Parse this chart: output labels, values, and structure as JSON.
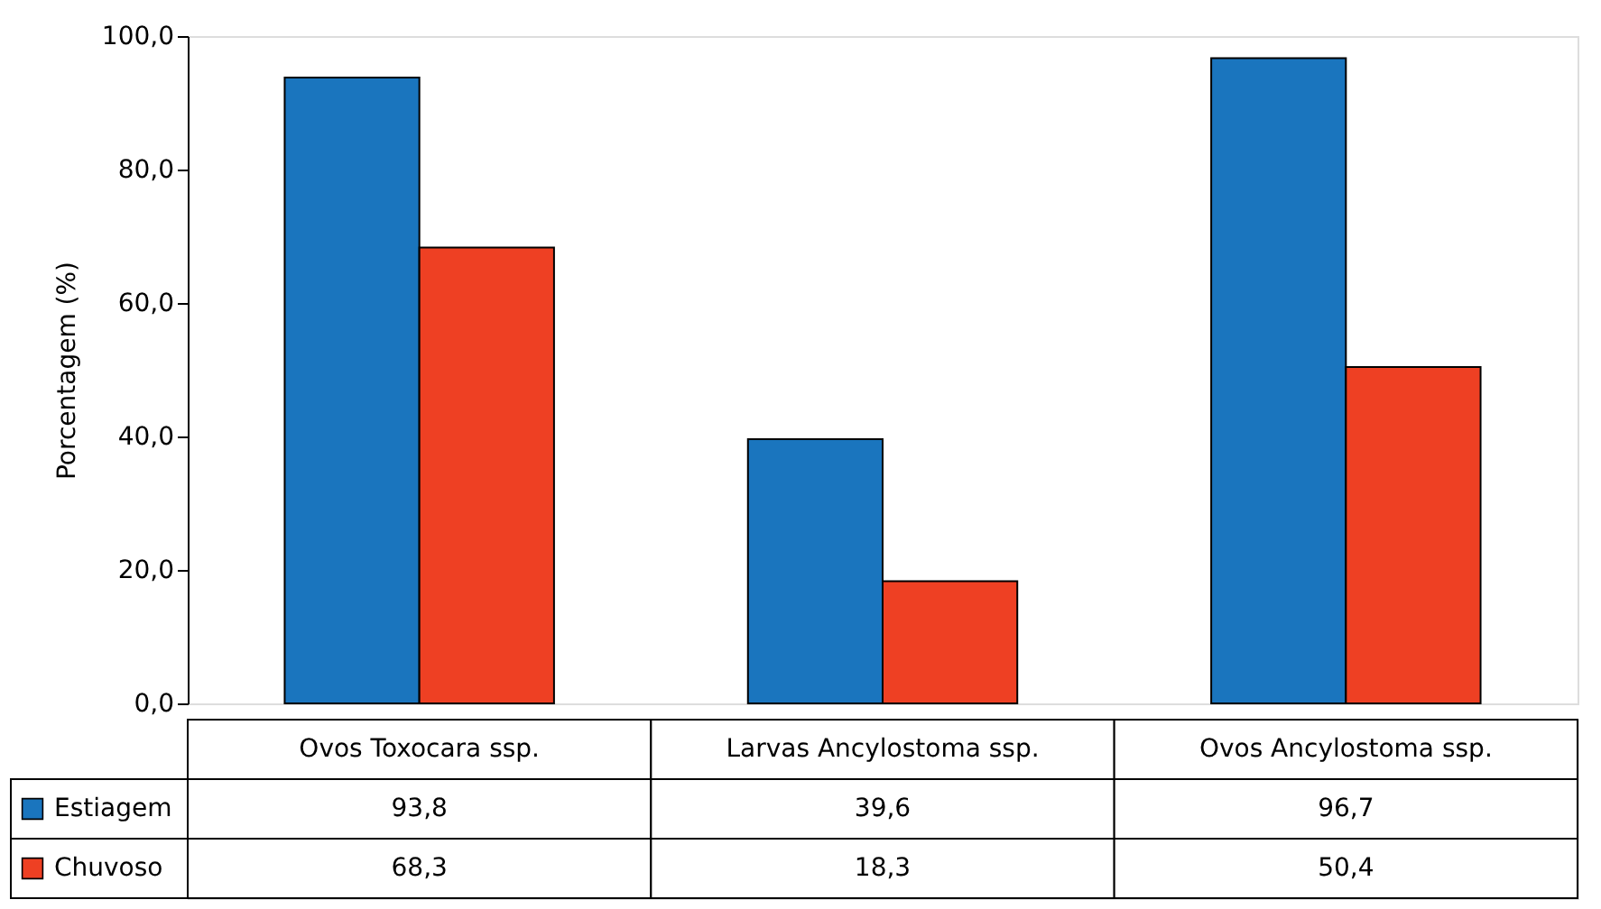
{
  "chart_data": {
    "type": "bar",
    "ylabel": "Porcentagem (%)",
    "categories": [
      "Ovos Toxocara ssp.",
      "Larvas Ancylostoma ssp.",
      "Ovos Ancylostoma ssp."
    ],
    "series": [
      {
        "name": "Estiagem",
        "color": "#1a75be",
        "values": [
          93.8,
          39.6,
          96.7
        ],
        "value_labels": [
          "93,8",
          "39,6",
          "96,7"
        ]
      },
      {
        "name": "Chuvoso",
        "color": "#ee4023",
        "values": [
          68.3,
          18.3,
          50.4
        ],
        "value_labels": [
          "68,3",
          "18,3",
          "50,4"
        ]
      }
    ],
    "ylim": [
      0,
      100
    ],
    "yticks": [
      {
        "value": 0,
        "label": "0,0"
      },
      {
        "value": 20,
        "label": "20,0"
      },
      {
        "value": 40,
        "label": "40,0"
      },
      {
        "value": 60,
        "label": "60,0"
      },
      {
        "value": 80,
        "label": "80,0"
      },
      {
        "value": 100,
        "label": "100,0"
      }
    ],
    "grid": false,
    "legend": "bottom"
  }
}
